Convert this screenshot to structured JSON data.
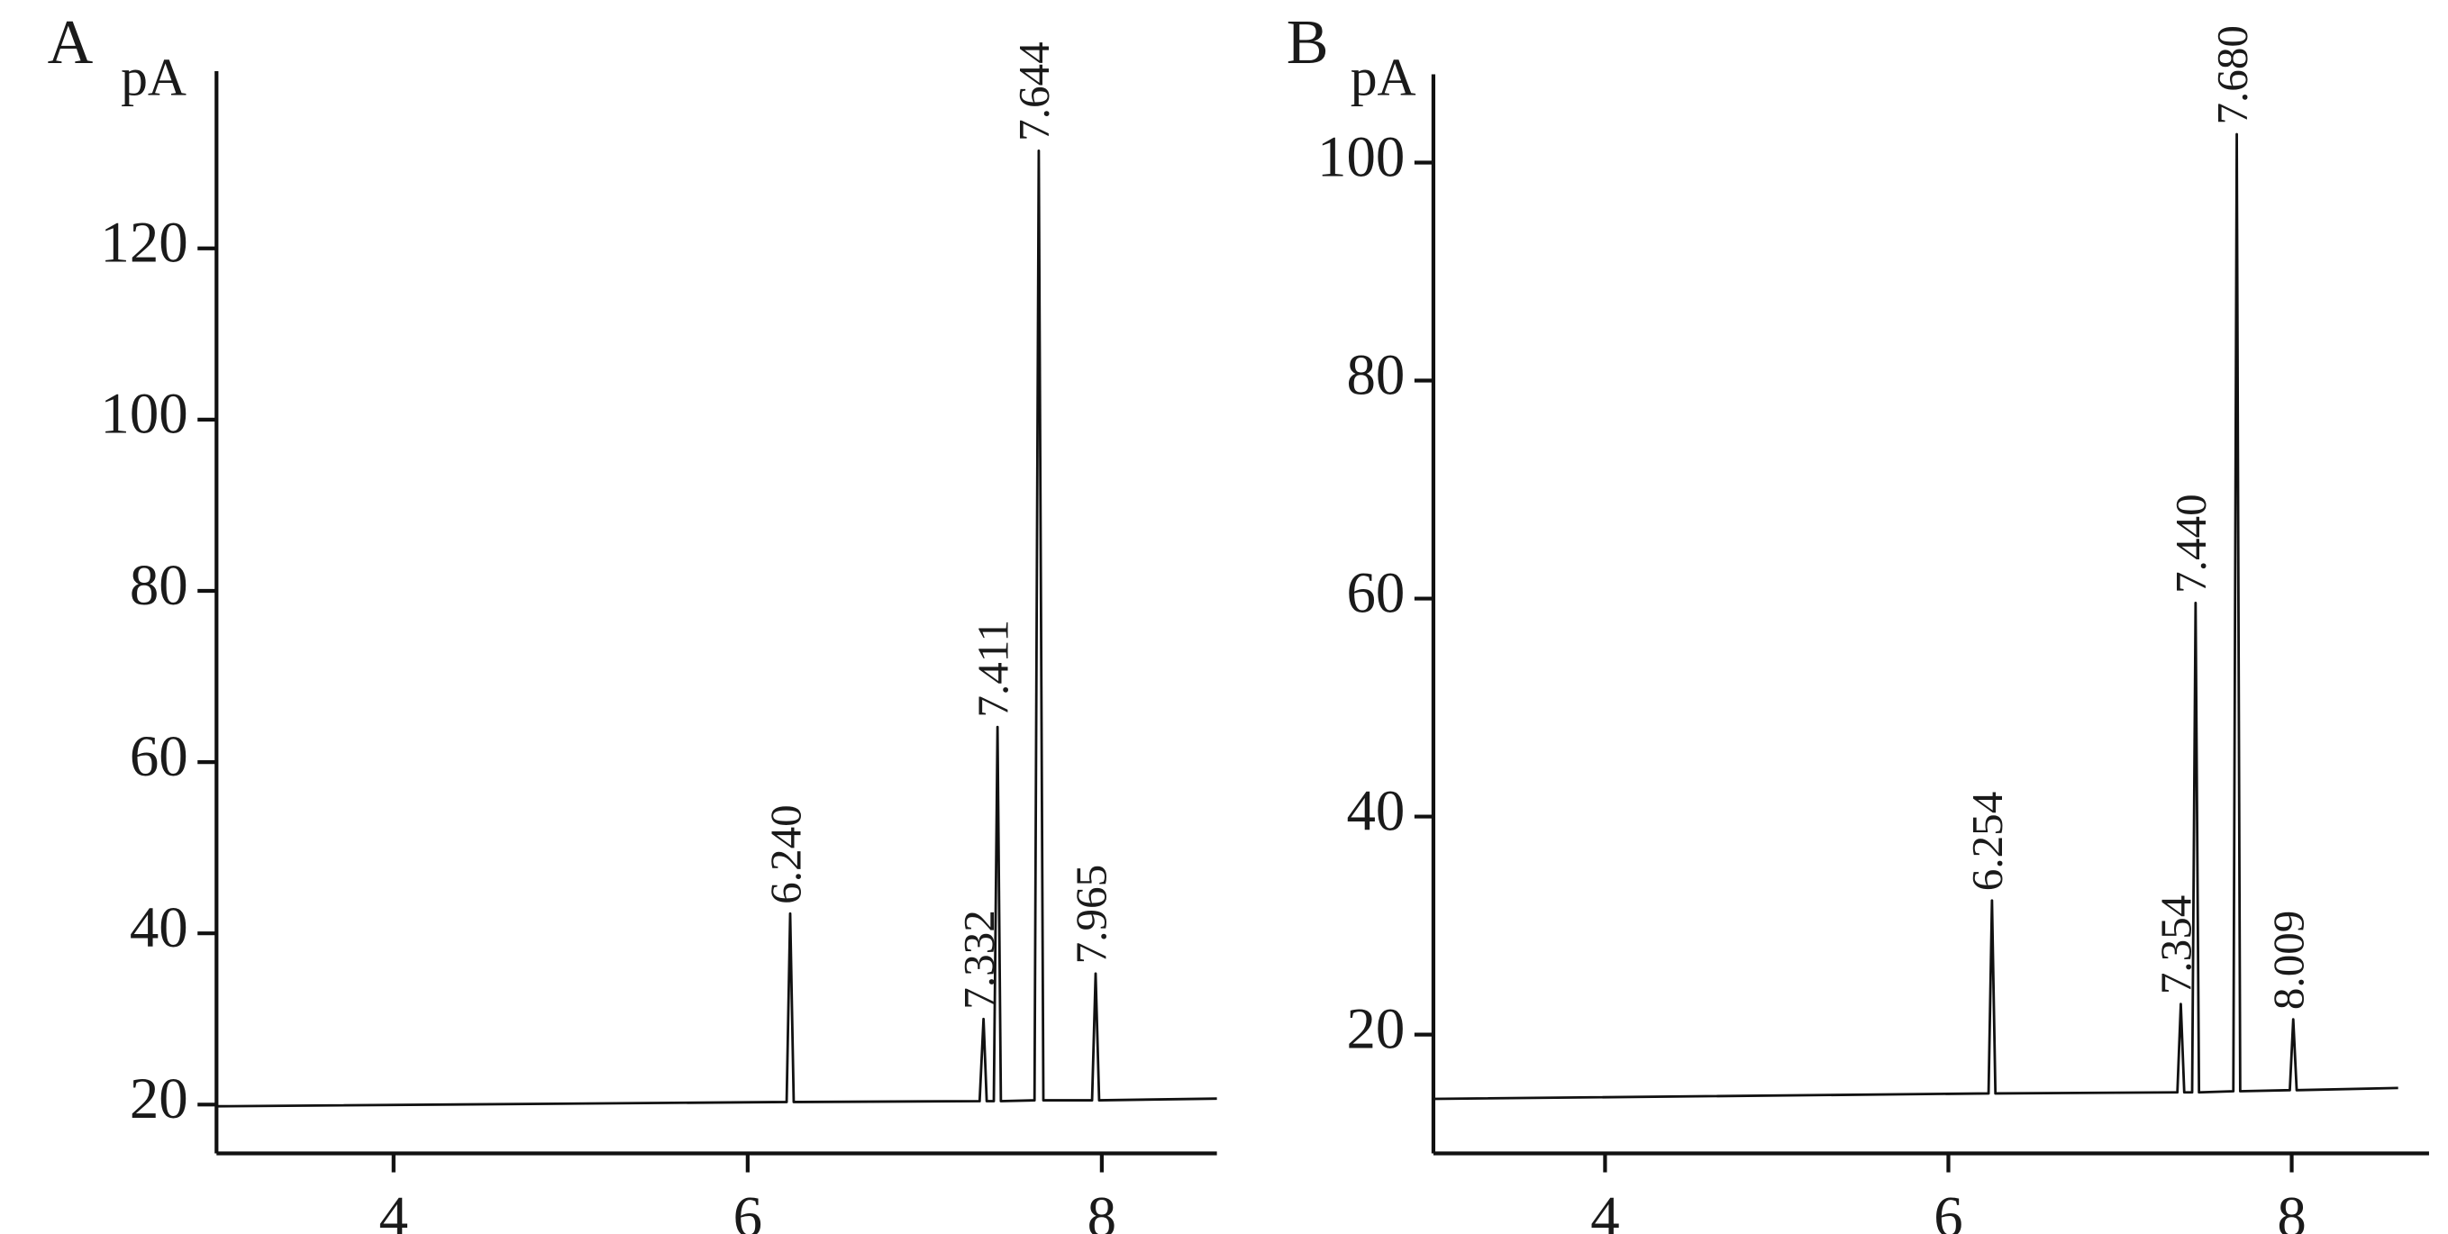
{
  "chart_data": [
    {
      "type": "line",
      "title": "A",
      "ylabel": "pA",
      "color": "#111111",
      "x": [
        3.0,
        6.22,
        6.24,
        6.26,
        7.31,
        7.332,
        7.35,
        7.39,
        7.411,
        7.43,
        7.62,
        7.644,
        7.67,
        7.945,
        7.965,
        7.985,
        8.65
      ],
      "values": [
        19.8,
        20.3,
        42.3,
        20.3,
        20.4,
        30.0,
        20.4,
        20.4,
        64.1,
        20.4,
        20.5,
        131.4,
        20.5,
        20.5,
        35.3,
        20.5,
        20.7
      ],
      "annotations": [
        {
          "text": "6.240",
          "x": 6.24,
          "y": 42.3
        },
        {
          "text": "7.332",
          "x": 7.332,
          "y": 30.0
        },
        {
          "text": "7.411",
          "x": 7.411,
          "y": 64.1
        },
        {
          "text": "7.644",
          "x": 7.644,
          "y": 131.4
        },
        {
          "text": "7.965",
          "x": 7.965,
          "y": 35.3
        }
      ],
      "xlim": [
        3.0,
        8.65
      ],
      "xticks": [
        4,
        6,
        8
      ],
      "ylim": [
        14.3,
        140.7
      ],
      "yticks": [
        20,
        40,
        60,
        80,
        100,
        120
      ]
    },
    {
      "type": "line",
      "title": "B",
      "ylabel": "pA",
      "color": "#111111",
      "x": [
        3.0,
        6.234,
        6.254,
        6.274,
        7.334,
        7.354,
        7.374,
        7.42,
        7.44,
        7.46,
        7.66,
        7.68,
        7.7,
        7.989,
        8.009,
        8.029,
        8.62
      ],
      "values": [
        14.1,
        14.6,
        32.3,
        14.6,
        14.7,
        22.8,
        14.7,
        14.7,
        59.6,
        14.7,
        14.8,
        102.6,
        14.8,
        14.9,
        21.4,
        14.9,
        15.1
      ],
      "annotations": [
        {
          "text": "6.254",
          "x": 6.254,
          "y": 32.3
        },
        {
          "text": "7.354",
          "x": 7.354,
          "y": 22.8
        },
        {
          "text": "7.440",
          "x": 7.44,
          "y": 59.6
        },
        {
          "text": "7.680",
          "x": 7.68,
          "y": 102.6
        },
        {
          "text": "8.009",
          "x": 8.009,
          "y": 21.4
        }
      ],
      "xlim": [
        3.0,
        8.8
      ],
      "xticks": [
        4,
        6,
        8
      ],
      "ylim": [
        9.1,
        108.1
      ],
      "yticks": [
        20,
        40,
        60,
        80,
        100
      ]
    }
  ]
}
